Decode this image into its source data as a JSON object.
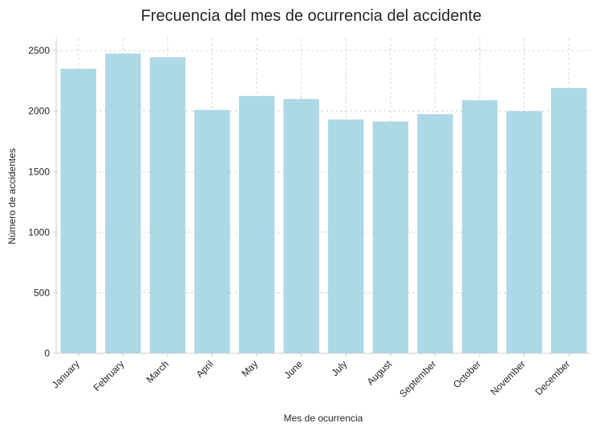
{
  "chart_data": {
    "type": "bar",
    "title": "Frecuencia del mes de ocurrencia del accidente",
    "xlabel": "Mes de ocurrencia",
    "ylabel": "Número de accidentes",
    "categories": [
      "January",
      "February",
      "March",
      "April",
      "May",
      "June",
      "July",
      "August",
      "September",
      "October",
      "November",
      "December"
    ],
    "values": [
      2350,
      2475,
      2445,
      2010,
      2125,
      2100,
      1930,
      1915,
      1975,
      2090,
      2000,
      2190
    ],
    "ylim": [
      0,
      2600
    ],
    "yticks": [
      0,
      500,
      1000,
      1500,
      2000,
      2500
    ],
    "grid": true,
    "bar_color": "#add8e6"
  }
}
